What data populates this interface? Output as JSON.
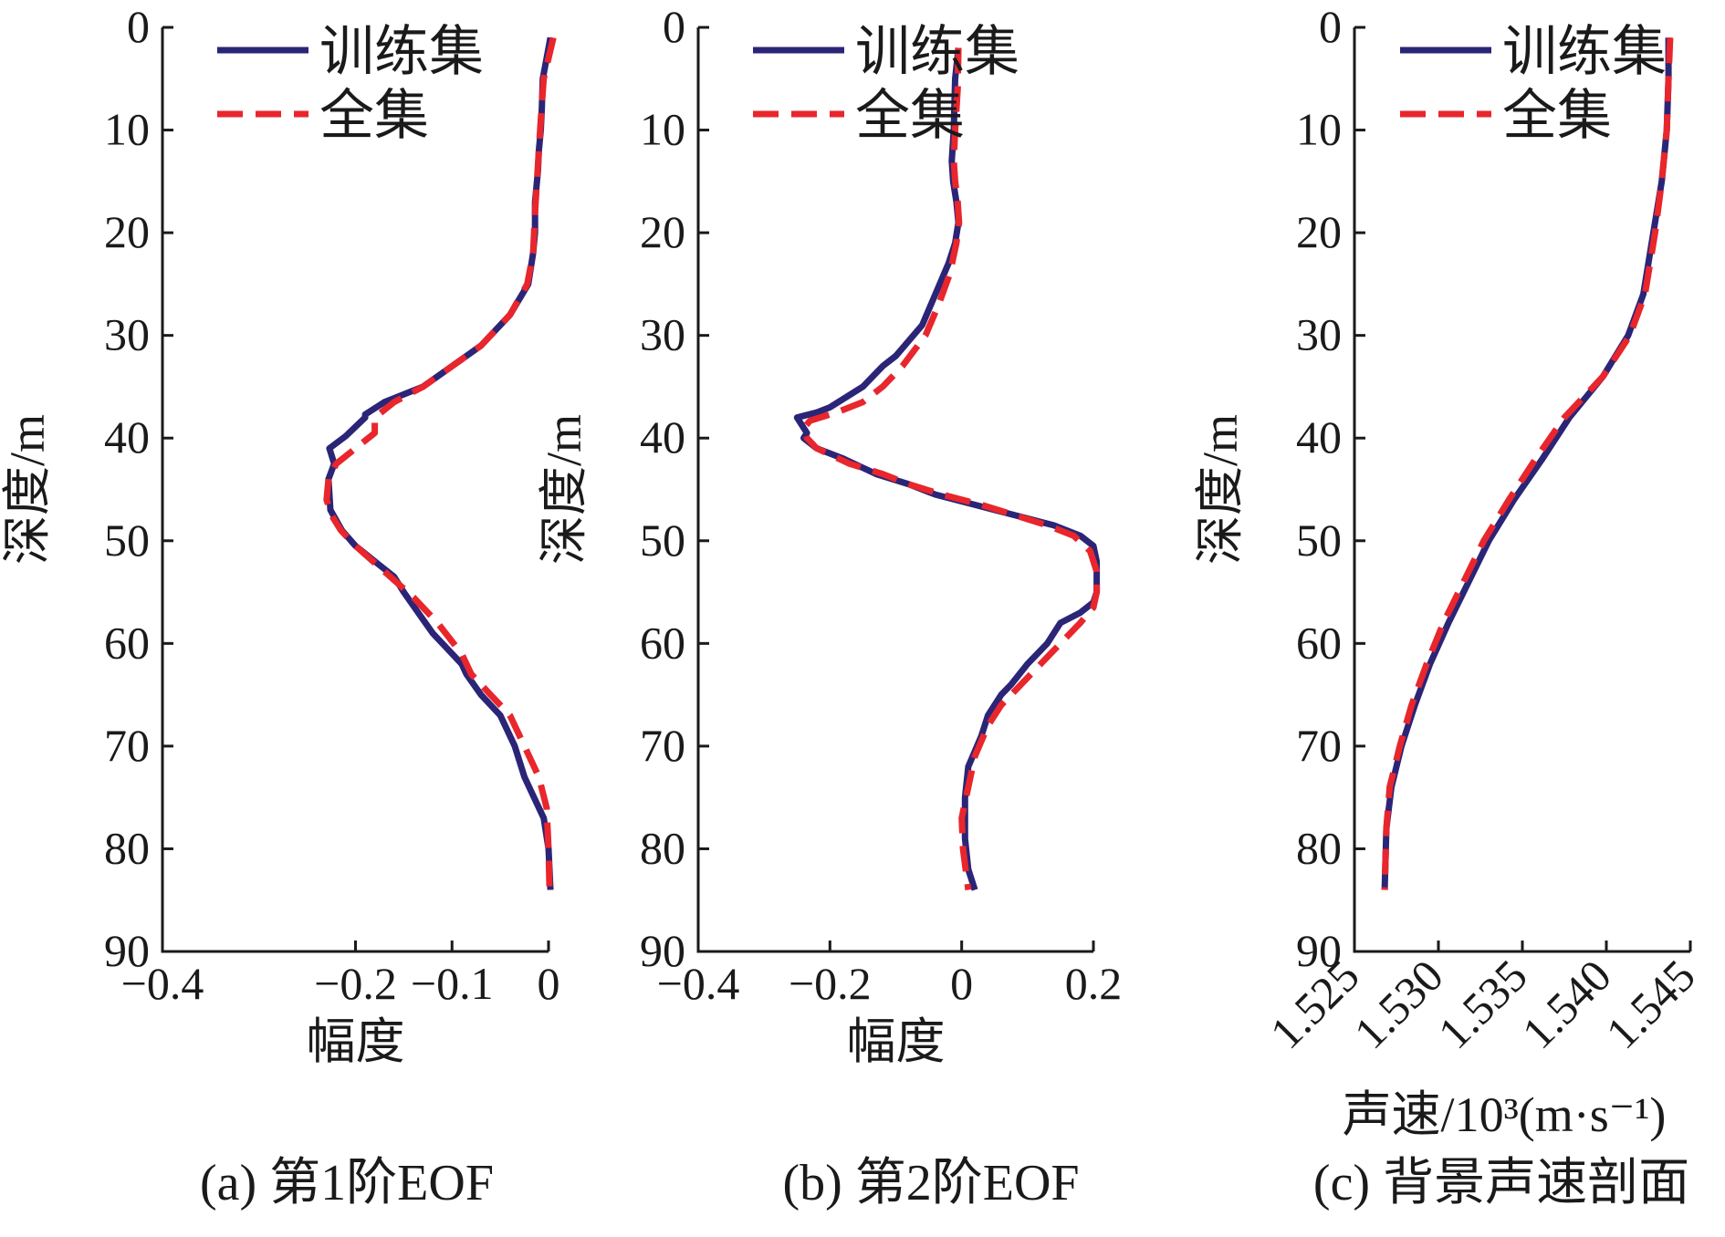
{
  "colors": {
    "train": "#2b2577",
    "full": "#e8262c",
    "axis": "#1a1a1a"
  },
  "chart_data": [
    {
      "type": "line",
      "caption": "(a) 第1阶EOF",
      "xlabel": "幅度",
      "ylabel": "深度/m",
      "xlim": [
        -0.4,
        0.0
      ],
      "ylim": [
        0,
        90
      ],
      "y_inverted": true,
      "xticks": [
        "−0.4",
        "−0.2",
        "−0.1",
        "0"
      ],
      "xtick_values": [
        -0.4,
        -0.2,
        -0.1,
        0.0
      ],
      "yticks": [
        "0",
        "10",
        "20",
        "30",
        "40",
        "50",
        "60",
        "70",
        "80",
        "90"
      ],
      "legend_position": "top-right",
      "series": [
        {
          "name": "训练集",
          "style": "solid",
          "x": [
            0.002,
            -0.006,
            -0.007,
            -0.008,
            -0.01,
            -0.011,
            -0.014,
            -0.014,
            -0.016,
            -0.021,
            -0.04,
            -0.07,
            -0.1,
            -0.13,
            -0.17,
            -0.19,
            -0.19,
            -0.21,
            -0.227,
            -0.222,
            -0.228,
            -0.226,
            -0.214,
            -0.2,
            -0.18,
            -0.16,
            -0.15,
            -0.135,
            -0.12,
            -0.1,
            -0.09,
            -0.085,
            -0.07,
            -0.05,
            -0.035,
            -0.025,
            -0.015,
            -0.005,
            0.0,
            0.002
          ],
          "y": [
            1,
            5,
            8,
            10,
            12,
            14,
            17,
            20,
            22,
            25,
            28,
            31,
            33,
            35,
            36.5,
            37.7,
            38,
            39.8,
            41,
            42.5,
            44,
            47,
            49,
            50.5,
            52,
            53.5,
            55,
            57,
            59,
            61,
            62,
            63,
            65,
            67,
            70,
            73,
            75,
            77,
            80,
            84
          ]
        },
        {
          "name": "全集",
          "style": "dashed",
          "x": [
            0.005,
            -0.005,
            -0.008,
            -0.01,
            -0.012,
            -0.014,
            -0.016,
            -0.022,
            -0.04,
            -0.07,
            -0.1,
            -0.13,
            -0.16,
            -0.18,
            -0.18,
            -0.2,
            -0.22,
            -0.228,
            -0.23,
            -0.225,
            -0.215,
            -0.2,
            -0.17,
            -0.14,
            -0.115,
            -0.09,
            -0.08,
            -0.06,
            -0.04,
            -0.025,
            -0.01,
            -0.002,
            0.0,
            0.001
          ],
          "y": [
            1,
            5,
            9,
            12,
            15,
            18,
            22,
            25,
            28,
            31,
            33,
            35,
            36.5,
            38,
            39.5,
            41,
            42.5,
            44,
            46,
            47.5,
            49,
            50.5,
            53,
            55.5,
            58,
            61,
            63,
            65,
            67,
            70,
            73,
            76,
            80,
            84
          ]
        }
      ]
    },
    {
      "type": "line",
      "caption": "(b) 第2阶EOF",
      "xlabel": "幅度",
      "ylabel": "深度/m",
      "xlim": [
        -0.4,
        0.2
      ],
      "ylim": [
        0,
        90
      ],
      "y_inverted": true,
      "xticks": [
        "−0.4",
        "−0.2",
        "0",
        "0.2"
      ],
      "xtick_values": [
        -0.4,
        -0.2,
        0.0,
        0.2
      ],
      "yticks": [
        "0",
        "10",
        "20",
        "30",
        "40",
        "50",
        "60",
        "70",
        "80",
        "90"
      ],
      "legend_position": "top-right",
      "series": [
        {
          "name": "训练集",
          "style": "solid",
          "x": [
            -0.005,
            -0.01,
            -0.012,
            -0.015,
            -0.013,
            -0.008,
            -0.005,
            -0.01,
            -0.02,
            -0.04,
            -0.06,
            -0.1,
            -0.12,
            -0.15,
            -0.2,
            -0.22,
            -0.25,
            -0.235,
            -0.24,
            -0.22,
            -0.18,
            -0.13,
            -0.08,
            -0.04,
            0.02,
            0.08,
            0.14,
            0.18,
            0.2,
            0.205,
            0.205,
            0.2,
            0.18,
            0.15,
            0.13,
            0.1,
            0.075,
            0.06,
            0.04,
            0.03,
            0.01,
            0.005,
            0.005,
            0.01,
            0.02
          ],
          "y": [
            2,
            5,
            10,
            13,
            15,
            17,
            19,
            21,
            23,
            26,
            29,
            32,
            33,
            35,
            37,
            37.5,
            38,
            39.5,
            40,
            41,
            42,
            43.5,
            44.5,
            45.5,
            46.5,
            47.5,
            48.5,
            49.5,
            50.5,
            52,
            55,
            56,
            57,
            58,
            60,
            62,
            64,
            65,
            67,
            69,
            72,
            75,
            79,
            82,
            84
          ]
        },
        {
          "name": "全集",
          "style": "dashed",
          "x": [
            -0.005,
            -0.006,
            -0.01,
            -0.012,
            -0.01,
            -0.006,
            -0.004,
            -0.008,
            -0.018,
            -0.035,
            -0.055,
            -0.09,
            -0.12,
            -0.15,
            -0.19,
            -0.23,
            -0.24,
            -0.235,
            -0.22,
            -0.17,
            -0.12,
            -0.08,
            -0.03,
            0.03,
            0.08,
            0.13,
            0.17,
            0.195,
            0.205,
            0.205,
            0.2,
            0.18,
            0.15,
            0.12,
            0.09,
            0.06,
            0.04,
            0.02,
            0.01,
            0.0,
            0.002,
            0.01
          ],
          "y": [
            2,
            6,
            10,
            13,
            15,
            17,
            19,
            21,
            24,
            27,
            30,
            33,
            35,
            36.5,
            37.5,
            38.3,
            39,
            40,
            41,
            42.5,
            43.5,
            44.5,
            45.5,
            46.5,
            47.5,
            48.5,
            49.5,
            51,
            53,
            55,
            56.5,
            58,
            60,
            62,
            64,
            66,
            68,
            71,
            74,
            77,
            80,
            84
          ]
        }
      ]
    },
    {
      "type": "line",
      "caption": "(c) 背景声速剖面",
      "xlabel": "声速/10³(m·s⁻¹)",
      "ylabel": "深度/m",
      "xlim": [
        1.525,
        1.545
      ],
      "ylim": [
        0,
        90
      ],
      "y_inverted": true,
      "xticks": [
        "1.525",
        "1.530",
        "1.535",
        "1.540",
        "1.545"
      ],
      "xtick_values": [
        1.525,
        1.53,
        1.535,
        1.54,
        1.545
      ],
      "yticks": [
        "0",
        "10",
        "20",
        "30",
        "40",
        "50",
        "60",
        "70",
        "80",
        "90"
      ],
      "legend_position": "top-right",
      "series": [
        {
          "name": "训练集",
          "style": "solid",
          "x": [
            1.5437,
            1.5437,
            1.5436,
            1.5433,
            1.5428,
            1.5422,
            1.5413,
            1.5398,
            1.5378,
            1.5362,
            1.5345,
            1.533,
            1.5318,
            1.5306,
            1.5295,
            1.5286,
            1.5278,
            1.5272,
            1.5269,
            1.5268
          ],
          "y": [
            1,
            5,
            10,
            15,
            20,
            26,
            30,
            34,
            38,
            42,
            46,
            50,
            54,
            58,
            62,
            66,
            70,
            74,
            78,
            84
          ]
        },
        {
          "name": "全集",
          "style": "dashed",
          "x": [
            1.5438,
            1.5437,
            1.5436,
            1.5433,
            1.5429,
            1.5423,
            1.5414,
            1.5398,
            1.5375,
            1.5358,
            1.5342,
            1.5327,
            1.5315,
            1.5303,
            1.5293,
            1.5284,
            1.5277,
            1.5271,
            1.5269,
            1.5268
          ],
          "y": [
            1,
            5,
            10,
            15,
            20,
            26,
            30,
            34,
            38,
            42,
            46,
            50,
            54,
            58,
            62,
            66,
            70,
            74,
            78,
            84
          ]
        }
      ]
    }
  ]
}
